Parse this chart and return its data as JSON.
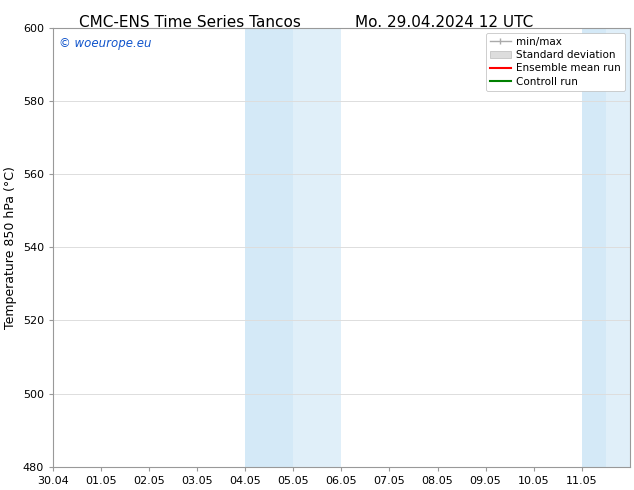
{
  "title_left": "CMC-ENS Time Series Tancos",
  "title_right": "Mo. 29.04.2024 12 UTC",
  "ylabel": "Temperature 850 hPa (°C)",
  "xlim_dates": [
    "30.04",
    "01.05",
    "02.05",
    "03.05",
    "04.05",
    "05.05",
    "06.05",
    "07.05",
    "08.05",
    "09.05",
    "10.05",
    "11.05"
  ],
  "ylim": [
    480,
    600
  ],
  "yticks": [
    480,
    500,
    520,
    540,
    560,
    580,
    600
  ],
  "shaded_regions": [
    {
      "xstart": 4,
      "xend": 5,
      "color": "#d4e9f7"
    },
    {
      "xstart": 5,
      "xend": 6,
      "color": "#e0eff9"
    },
    {
      "xstart": 11,
      "xend": 11.5,
      "color": "#d4e9f7"
    },
    {
      "xstart": 11.5,
      "xend": 12,
      "color": "#e0eff9"
    }
  ],
  "watermark_text": "© woeurope.eu",
  "watermark_color": "#1155cc",
  "legend_items": [
    {
      "label": "min/max",
      "color": "#aaaaaa",
      "lw": 1.0
    },
    {
      "label": "Standard deviation",
      "color": "#cccccc",
      "lw": 4
    },
    {
      "label": "Ensemble mean run",
      "color": "red",
      "lw": 1.5
    },
    {
      "label": "Controll run",
      "color": "green",
      "lw": 1.5
    }
  ],
  "bg_color": "#ffffff",
  "plot_bg_color": "#f8f8f8",
  "spine_color": "#999999",
  "grid_color": "#dddddd",
  "title_fontsize": 11,
  "tick_fontsize": 8,
  "ylabel_fontsize": 9
}
